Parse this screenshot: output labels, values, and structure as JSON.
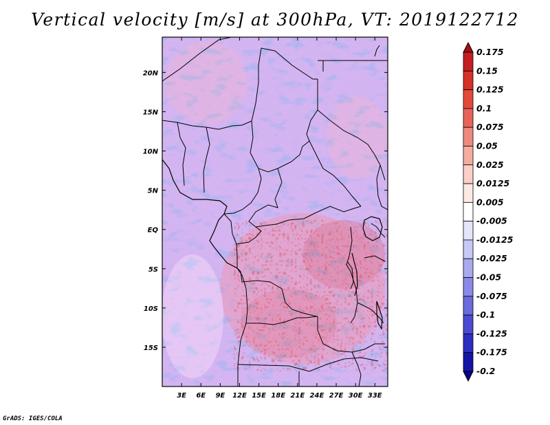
{
  "title": "Vertical velocity [m/s] at 300hPa, VT: 2019122712",
  "credit": "GrADS: IGES/COLA",
  "map": {
    "lon_ticks": [
      "3E",
      "6E",
      "9E",
      "12E",
      "15E",
      "18E",
      "21E",
      "24E",
      "27E",
      "30E",
      "33E"
    ],
    "lat_ticks": [
      "20N",
      "15N",
      "10N",
      "5N",
      "EQ",
      "5S",
      "10S",
      "15S"
    ],
    "lon_range": [
      0,
      35
    ],
    "lat_range": [
      -20,
      24.5
    ]
  },
  "colorbar": {
    "labels": [
      "0.175",
      "0.15",
      "0.125",
      "0.1",
      "0.075",
      "0.05",
      "0.025",
      "0.0125",
      "0.005",
      "-0.005",
      "-0.0125",
      "-0.025",
      "-0.05",
      "-0.075",
      "-0.1",
      "-0.125",
      "-0.175",
      "-0.2"
    ],
    "colors": [
      "#a50f15",
      "#c41e22",
      "#d73027",
      "#e34a3a",
      "#e8635a",
      "#ef8a7e",
      "#f5aca0",
      "#facfc6",
      "#fde9e4",
      "#ffffff",
      "#e4e4fb",
      "#c8c8f6",
      "#a9a9ef",
      "#8a8ae8",
      "#6b6bde",
      "#4b4bd2",
      "#2d2dc2",
      "#1414a8",
      "#05058a"
    ]
  }
}
